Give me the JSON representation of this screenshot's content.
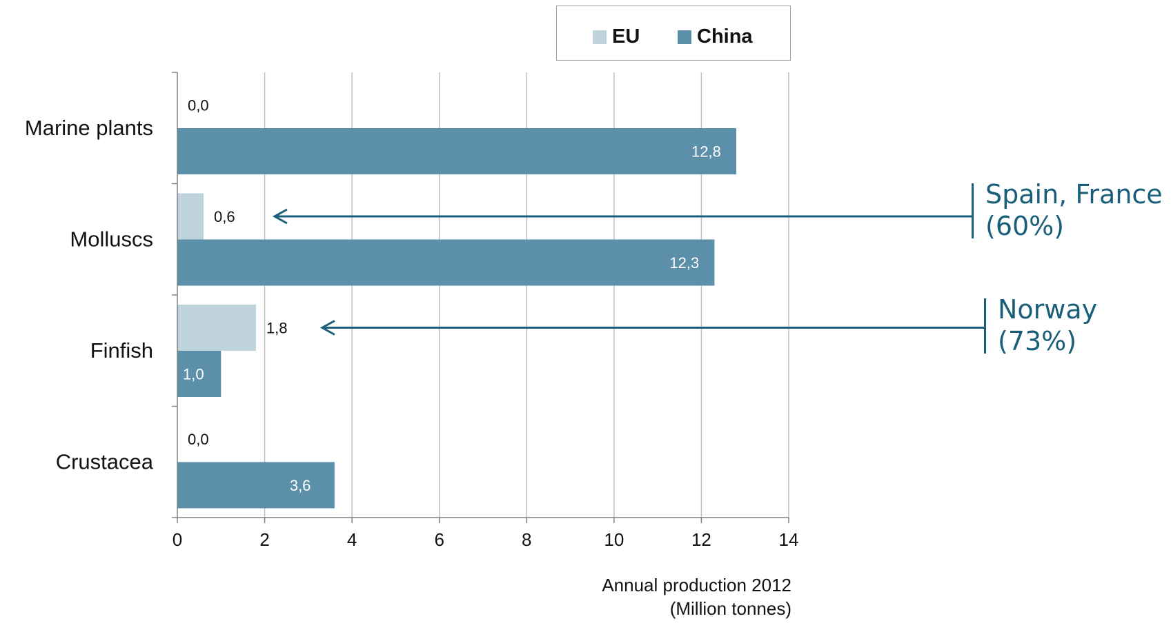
{
  "chart_data": {
    "type": "bar",
    "orientation": "horizontal",
    "categories": [
      "Marine plants",
      "Molluscs",
      "Finfish",
      "Crustacea"
    ],
    "series": [
      {
        "name": "EU",
        "values": [
          0.0,
          0.6,
          1.8,
          0.0
        ],
        "labels": [
          "0,0",
          "0,6",
          "1,8",
          "0,0"
        ],
        "color": "#bfd3dc"
      },
      {
        "name": "China",
        "values": [
          12.8,
          12.3,
          1.0,
          3.6
        ],
        "labels": [
          "12,8",
          "12,3",
          "1,0",
          "3,6"
        ],
        "color": "#5b8faa"
      }
    ],
    "xlim": [
      0,
      14
    ],
    "xticks": [
      "0",
      "2",
      "4",
      "6",
      "8",
      "10",
      "12",
      "14"
    ],
    "xlabel_line1": "Annual production 2012",
    "xlabel_line2": "(Million tonnes)",
    "grid": "vertical",
    "legend_position": "top"
  },
  "annotations": [
    {
      "category": "Molluscs",
      "line1": "Spain, France",
      "line2": "(60%)"
    },
    {
      "category": "Finfish",
      "line1": "Norway",
      "line2": "(73%)"
    }
  ],
  "colors": {
    "annotation": "#1a5f7a",
    "grid": "#bfbfbf",
    "axis": "#808080"
  }
}
